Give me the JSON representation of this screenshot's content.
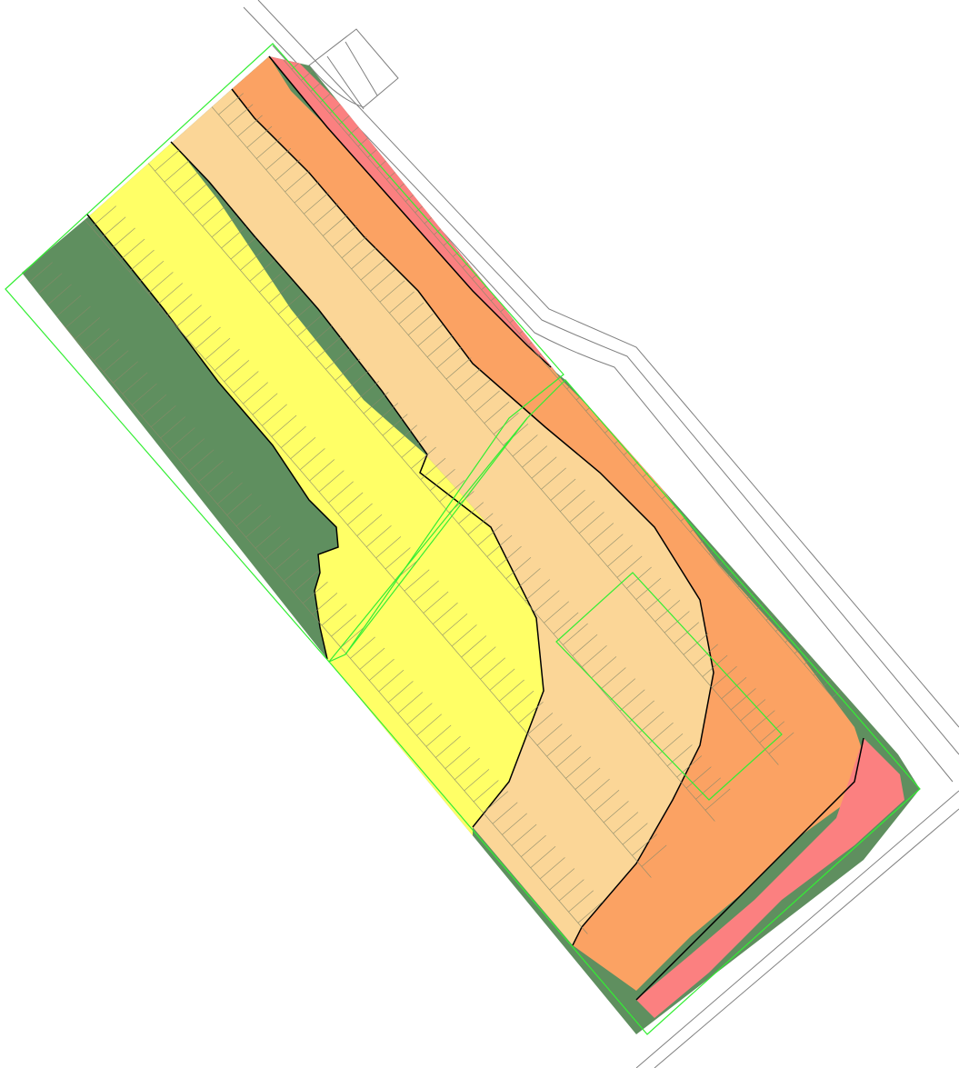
{
  "colors": {
    "background": "#ffffff",
    "zone_dark_green": "#5f8f5f",
    "zone_yellow": "#ffff66",
    "zone_light_orange": "#fbd697",
    "zone_orange": "#fba263",
    "zone_pink": "#fb8080",
    "parcel_line": "#8a8a6a",
    "contour_line": "#000000",
    "site_boundary": "#33ee33",
    "road_line": "#7f7f7f"
  },
  "zones": [
    {
      "name": "zone-dark-green",
      "color_key": "zone_dark_green"
    },
    {
      "name": "zone-yellow",
      "color_key": "zone_yellow"
    },
    {
      "name": "zone-light-orange",
      "color_key": "zone_light_orange"
    },
    {
      "name": "zone-orange",
      "color_key": "zone_orange"
    },
    {
      "name": "zone-pink",
      "color_key": "zone_pink"
    }
  ]
}
